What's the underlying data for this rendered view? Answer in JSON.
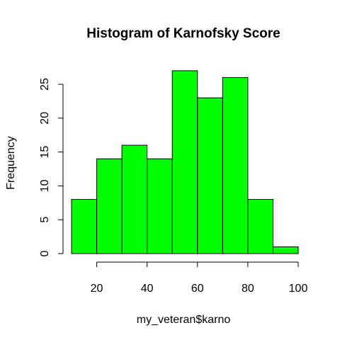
{
  "chart_data": {
    "type": "bar",
    "title": "Histogram of Karnofsky Score",
    "xlabel": "my_veteran$karno",
    "ylabel": "Frequency",
    "bins": [
      {
        "x0": 10,
        "x1": 20,
        "count": 8
      },
      {
        "x0": 20,
        "x1": 30,
        "count": 14
      },
      {
        "x0": 30,
        "x1": 40,
        "count": 16
      },
      {
        "x0": 40,
        "x1": 50,
        "count": 14
      },
      {
        "x0": 50,
        "x1": 60,
        "count": 27
      },
      {
        "x0": 60,
        "x1": 70,
        "count": 23
      },
      {
        "x0": 70,
        "x1": 80,
        "count": 26
      },
      {
        "x0": 80,
        "x1": 90,
        "count": 8
      },
      {
        "x0": 90,
        "x1": 100,
        "count": 1
      }
    ],
    "x_ticks": [
      20,
      40,
      60,
      80,
      100
    ],
    "y_ticks": [
      0,
      5,
      10,
      15,
      20,
      25
    ],
    "xlim": [
      10,
      100
    ],
    "ylim": [
      0,
      27
    ],
    "bar_color": "#00ff00",
    "border_color": "#000000",
    "grid": false,
    "legend": "none"
  }
}
